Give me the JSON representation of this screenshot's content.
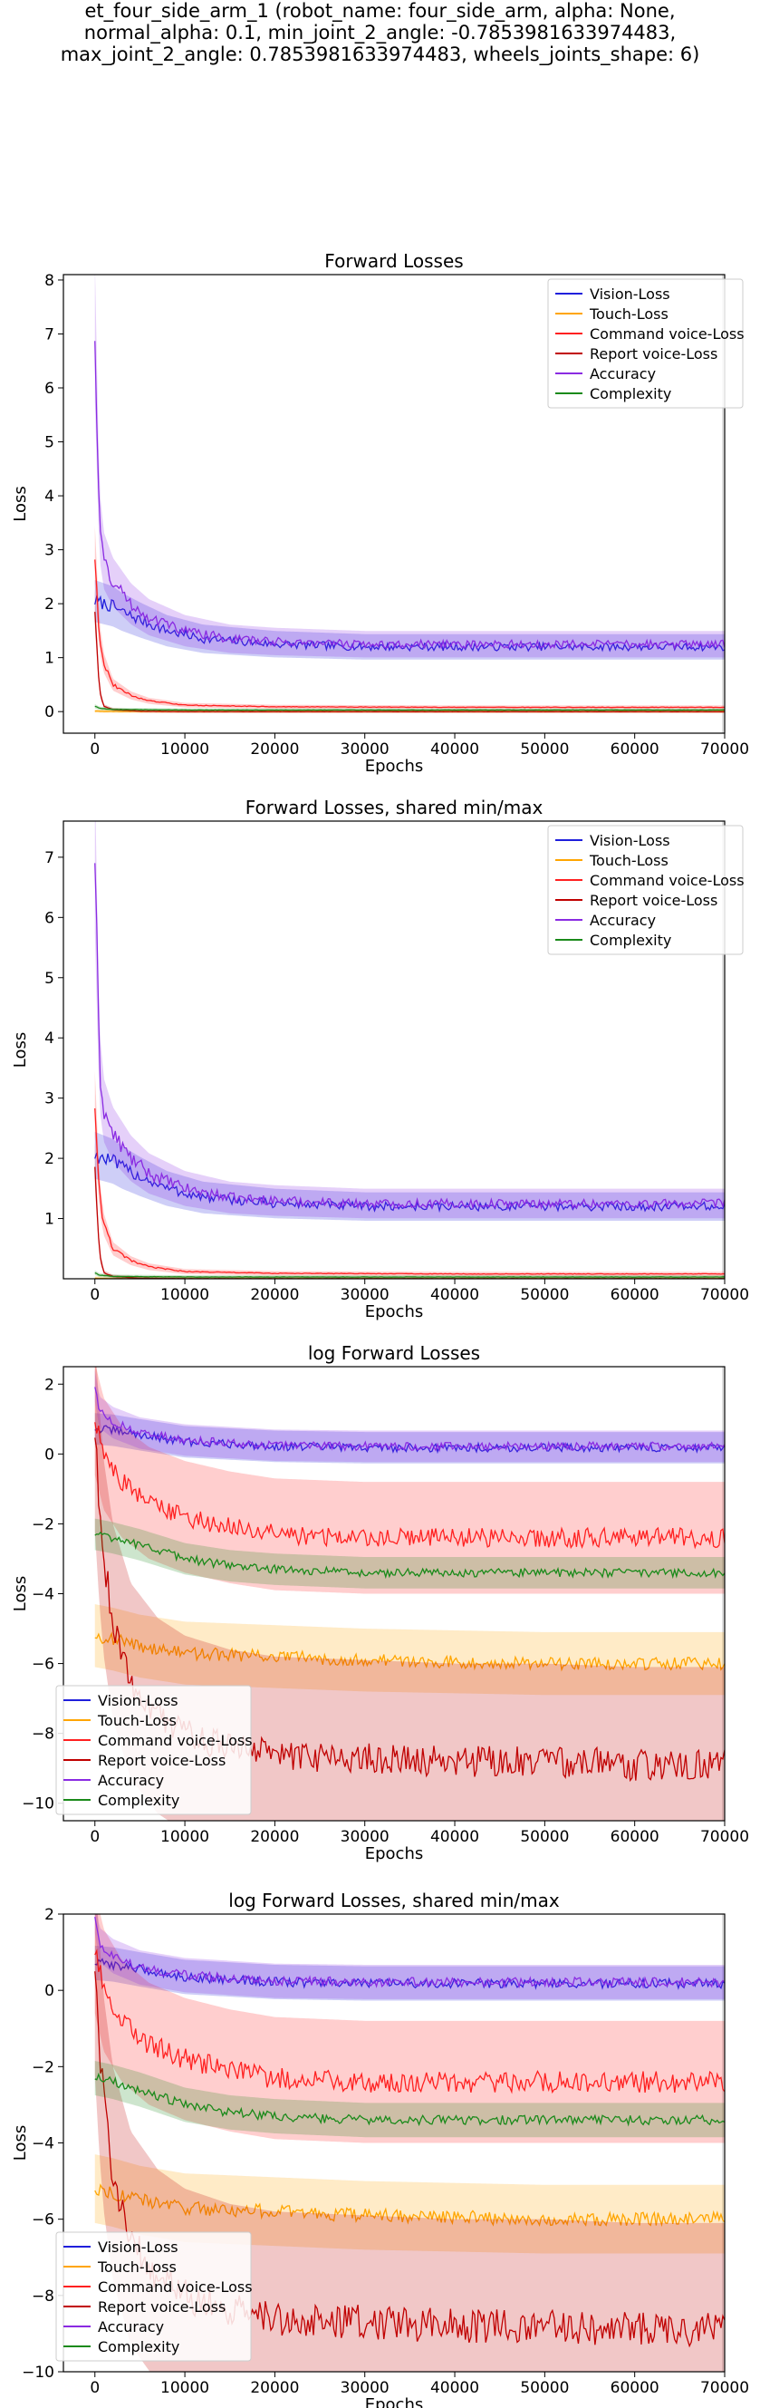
{
  "suptitle": {
    "line1": "et_four_side_arm_1 (robot_name: four_side_arm, alpha: None,",
    "line2": "normal_alpha: 0.1, min_joint_2_angle: -0.7853981633974483,",
    "line3": "max_joint_2_angle: 0.7853981633974483, wheels_joints_shape: 6)"
  },
  "colors": {
    "vision": "#1f1fdc",
    "touch": "#ffa500",
    "command": "#ff2020",
    "report": "#c00000",
    "accuracy": "#8a2be2",
    "complexity": "#1a8a1a",
    "vertical_marker": "#bbbbbb"
  },
  "chart_data": [
    {
      "type": "line",
      "title": "Forward Losses",
      "xlabel": "Epochs",
      "ylabel": "Loss",
      "xlim": [
        -3500,
        70000
      ],
      "ylim": [
        -0.4,
        8.1
      ],
      "xticks": [
        0,
        10000,
        20000,
        30000,
        40000,
        50000,
        60000,
        70000
      ],
      "yticks": [
        0,
        1,
        2,
        3,
        4,
        5,
        6,
        7,
        8
      ],
      "log": false,
      "legend": "top-right",
      "series": [
        {
          "name": "Vision-Loss",
          "x": [
            0,
            1000,
            2000,
            3000,
            5000,
            8000,
            12000,
            20000,
            30000,
            40000,
            50000,
            60000,
            70000
          ],
          "y": [
            2.05,
            2.0,
            1.95,
            1.85,
            1.7,
            1.5,
            1.35,
            1.25,
            1.2,
            1.2,
            1.2,
            1.2,
            1.2
          ]
        },
        {
          "name": "Touch-Loss",
          "x": [
            0,
            1000,
            3000,
            10000,
            30000,
            50000,
            70000
          ],
          "y": [
            0.01,
            0.005,
            0.003,
            0.003,
            0.003,
            0.003,
            0.003
          ]
        },
        {
          "name": "Command voice-Loss",
          "x": [
            0,
            500,
            1000,
            2000,
            4000,
            6000,
            10000,
            20000,
            40000,
            70000
          ],
          "y": [
            2.9,
            1.4,
            0.9,
            0.5,
            0.3,
            0.2,
            0.12,
            0.09,
            0.08,
            0.08
          ]
        },
        {
          "name": "Report voice-Loss",
          "x": [
            0,
            500,
            1000,
            2000,
            5000,
            10000,
            30000,
            70000
          ],
          "y": [
            1.9,
            0.4,
            0.1,
            0.04,
            0.01,
            0.001,
            0.0002,
            0.0001
          ]
        },
        {
          "name": "Accuracy",
          "x": [
            0,
            500,
            1000,
            2000,
            4000,
            6000,
            10000,
            15000,
            20000,
            30000,
            40000,
            50000,
            60000,
            70000
          ],
          "y": [
            7.05,
            3.5,
            2.8,
            2.4,
            2.0,
            1.75,
            1.5,
            1.35,
            1.3,
            1.25,
            1.25,
            1.25,
            1.25,
            1.25
          ]
        },
        {
          "name": "Complexity",
          "x": [
            0,
            500,
            2000,
            10000,
            70000
          ],
          "y": [
            0.1,
            0.06,
            0.04,
            0.03,
            0.03
          ]
        }
      ]
    },
    {
      "type": "line",
      "title": "Forward Losses, shared min/max",
      "xlabel": "Epochs",
      "ylabel": "Loss",
      "xlim": [
        -3500,
        70000
      ],
      "ylim": [
        0.0,
        7.6
      ],
      "xticks": [
        0,
        10000,
        20000,
        30000,
        40000,
        50000,
        60000,
        70000
      ],
      "yticks": [
        1,
        2,
        3,
        4,
        5,
        6,
        7
      ],
      "log": false,
      "legend": "top-right",
      "series": [
        {
          "name": "Vision-Loss",
          "x": [
            0,
            1000,
            2000,
            3000,
            5000,
            8000,
            12000,
            20000,
            30000,
            40000,
            50000,
            60000,
            70000
          ],
          "y": [
            2.05,
            2.0,
            1.95,
            1.85,
            1.7,
            1.5,
            1.35,
            1.25,
            1.2,
            1.2,
            1.2,
            1.2,
            1.2
          ]
        },
        {
          "name": "Touch-Loss",
          "x": [
            0,
            1000,
            3000,
            10000,
            30000,
            50000,
            70000
          ],
          "y": [
            0.01,
            0.005,
            0.003,
            0.003,
            0.003,
            0.003,
            0.003
          ]
        },
        {
          "name": "Command voice-Loss",
          "x": [
            0,
            500,
            1000,
            2000,
            4000,
            6000,
            10000,
            20000,
            40000,
            70000
          ],
          "y": [
            2.9,
            1.4,
            0.9,
            0.5,
            0.3,
            0.2,
            0.12,
            0.09,
            0.08,
            0.08
          ]
        },
        {
          "name": "Report voice-Loss",
          "x": [
            0,
            500,
            1000,
            2000,
            5000,
            10000,
            30000,
            70000
          ],
          "y": [
            1.9,
            0.4,
            0.1,
            0.04,
            0.01,
            0.001,
            0.0002,
            0.0001
          ]
        },
        {
          "name": "Accuracy",
          "x": [
            0,
            500,
            1000,
            2000,
            4000,
            6000,
            10000,
            15000,
            20000,
            30000,
            40000,
            50000,
            60000,
            70000
          ],
          "y": [
            7.05,
            3.5,
            2.8,
            2.4,
            2.0,
            1.75,
            1.5,
            1.35,
            1.3,
            1.25,
            1.25,
            1.25,
            1.25,
            1.25
          ]
        },
        {
          "name": "Complexity",
          "x": [
            0,
            500,
            2000,
            10000,
            70000
          ],
          "y": [
            0.1,
            0.06,
            0.04,
            0.03,
            0.03
          ]
        }
      ]
    },
    {
      "type": "line",
      "title": "log Forward Losses",
      "xlabel": "Epochs",
      "ylabel": "Loss",
      "xlim": [
        -3500,
        70000
      ],
      "ylim": [
        -10.5,
        2.5
      ],
      "xticks": [
        0,
        10000,
        20000,
        30000,
        40000,
        50000,
        60000,
        70000
      ],
      "yticks": [
        -10,
        -8,
        -6,
        -4,
        -2,
        0,
        2
      ],
      "log": true,
      "legend": "bottom-left",
      "series": [
        {
          "name": "Vision-Loss",
          "x": [
            0,
            2000,
            5000,
            10000,
            20000,
            30000,
            50000,
            70000
          ],
          "y": [
            0.72,
            0.68,
            0.55,
            0.35,
            0.22,
            0.18,
            0.18,
            0.18
          ]
        },
        {
          "name": "Touch-Loss",
          "x": [
            0,
            2000,
            5000,
            10000,
            20000,
            30000,
            50000,
            70000
          ],
          "y": [
            -5.2,
            -5.3,
            -5.5,
            -5.7,
            -5.8,
            -5.9,
            -6.0,
            -6.0
          ]
        },
        {
          "name": "Command voice-Loss",
          "x": [
            0,
            1000,
            3000,
            6000,
            10000,
            15000,
            20000,
            30000,
            40000,
            50000,
            60000,
            70000
          ],
          "y": [
            1.0,
            0.0,
            -0.8,
            -1.4,
            -1.8,
            -2.1,
            -2.3,
            -2.4,
            -2.4,
            -2.4,
            -2.4,
            -2.4
          ]
        },
        {
          "name": "Report voice-Loss",
          "x": [
            0,
            500,
            1000,
            2000,
            4000,
            7000,
            10000,
            15000,
            20000,
            30000,
            40000,
            50000,
            60000,
            70000
          ],
          "y": [
            0.6,
            -1.5,
            -3.0,
            -4.8,
            -6.5,
            -7.5,
            -8.0,
            -8.4,
            -8.6,
            -8.7,
            -8.8,
            -8.8,
            -8.9,
            -8.9
          ]
        },
        {
          "name": "Accuracy",
          "x": [
            0,
            500,
            2000,
            5000,
            10000,
            20000,
            30000,
            50000,
            70000
          ],
          "y": [
            1.95,
            1.2,
            0.9,
            0.6,
            0.4,
            0.25,
            0.22,
            0.22,
            0.22
          ]
        },
        {
          "name": "Complexity",
          "x": [
            0,
            2000,
            5000,
            10000,
            15000,
            20000,
            30000,
            50000,
            70000
          ],
          "y": [
            -2.3,
            -2.4,
            -2.6,
            -3.0,
            -3.2,
            -3.3,
            -3.4,
            -3.4,
            -3.4
          ]
        }
      ]
    },
    {
      "type": "line",
      "title": "log Forward Losses, shared min/max",
      "xlabel": "Epochs",
      "ylabel": "Loss",
      "xlim": [
        -3500,
        70000
      ],
      "ylim": [
        -10.0,
        2.0
      ],
      "xticks": [
        0,
        10000,
        20000,
        30000,
        40000,
        50000,
        60000,
        70000
      ],
      "yticks": [
        -10,
        -8,
        -6,
        -4,
        -2,
        0,
        2
      ],
      "log": true,
      "legend": "bottom-left",
      "series": [
        {
          "name": "Vision-Loss",
          "x": [
            0,
            2000,
            5000,
            10000,
            20000,
            30000,
            50000,
            70000
          ],
          "y": [
            0.72,
            0.68,
            0.55,
            0.35,
            0.22,
            0.18,
            0.18,
            0.18
          ]
        },
        {
          "name": "Touch-Loss",
          "x": [
            0,
            2000,
            5000,
            10000,
            20000,
            30000,
            50000,
            70000
          ],
          "y": [
            -5.2,
            -5.3,
            -5.5,
            -5.7,
            -5.8,
            -5.9,
            -6.0,
            -6.0
          ]
        },
        {
          "name": "Command voice-Loss",
          "x": [
            0,
            1000,
            3000,
            6000,
            10000,
            15000,
            20000,
            30000,
            40000,
            50000,
            60000,
            70000
          ],
          "y": [
            1.0,
            0.0,
            -0.8,
            -1.4,
            -1.8,
            -2.1,
            -2.3,
            -2.4,
            -2.4,
            -2.4,
            -2.4,
            -2.4
          ]
        },
        {
          "name": "Report voice-Loss",
          "x": [
            0,
            500,
            1000,
            2000,
            4000,
            7000,
            10000,
            15000,
            20000,
            30000,
            40000,
            50000,
            60000,
            70000
          ],
          "y": [
            0.6,
            -1.5,
            -3.0,
            -4.8,
            -6.5,
            -7.5,
            -8.0,
            -8.4,
            -8.6,
            -8.7,
            -8.8,
            -8.8,
            -8.9,
            -8.9
          ]
        },
        {
          "name": "Accuracy",
          "x": [
            0,
            500,
            2000,
            5000,
            10000,
            20000,
            30000,
            50000,
            70000
          ],
          "y": [
            1.95,
            1.2,
            0.9,
            0.6,
            0.4,
            0.25,
            0.22,
            0.22,
            0.22
          ]
        },
        {
          "name": "Complexity",
          "x": [
            0,
            2000,
            5000,
            10000,
            15000,
            20000,
            30000,
            50000,
            70000
          ],
          "y": [
            -2.3,
            -2.4,
            -2.6,
            -3.0,
            -3.2,
            -3.3,
            -3.4,
            -3.4,
            -3.4
          ]
        }
      ]
    }
  ]
}
